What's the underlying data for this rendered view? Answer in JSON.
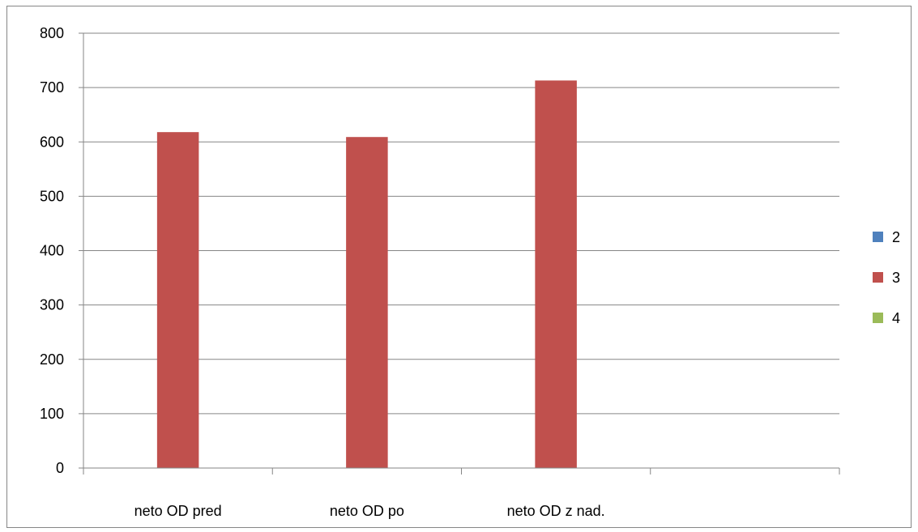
{
  "chart_data": {
    "type": "bar",
    "categories": [
      "neto OD pred",
      "neto OD po",
      "neto OD z nad.",
      ""
    ],
    "series": [
      {
        "name": "2",
        "color": "#4f81bd",
        "values": [
          0,
          0,
          0,
          0
        ]
      },
      {
        "name": "3",
        "color": "#c0504d",
        "values": [
          618,
          609,
          713,
          0
        ]
      },
      {
        "name": "4",
        "color": "#9bbb59",
        "values": [
          0,
          0,
          0,
          0
        ]
      }
    ],
    "title": "",
    "xlabel": "",
    "ylabel": "",
    "ylim": [
      0,
      800
    ],
    "yticks": [
      0,
      100,
      200,
      300,
      400,
      500,
      600,
      700,
      800
    ],
    "grid": true,
    "legend_position": "right"
  }
}
